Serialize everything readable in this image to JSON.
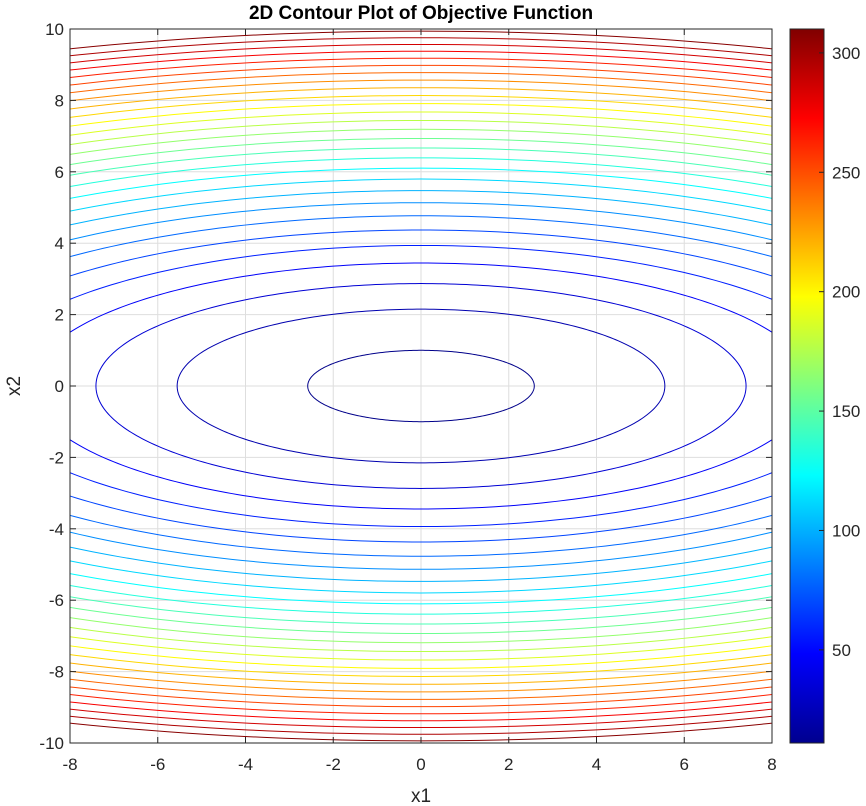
{
  "chart_data": {
    "type": "contour",
    "title": "2D Contour Plot of Objective Function",
    "xlabel": "x1",
    "ylabel": "x2",
    "xlim": [
      -8,
      8
    ],
    "ylim": [
      -10,
      10
    ],
    "x_ticks": [
      -8,
      -6,
      -4,
      -2,
      0,
      2,
      4,
      6,
      8
    ],
    "y_ticks": [
      -10,
      -8,
      -6,
      -4,
      -2,
      0,
      2,
      4,
      6,
      8,
      10
    ],
    "grid": true,
    "colormap": "jet",
    "colorbar": {
      "location": "right",
      "range": [
        11,
        310
      ],
      "ticks": [
        50,
        100,
        150,
        200,
        250,
        300
      ]
    },
    "contour_levels": [
      14,
      24.9,
      35.7,
      46.6,
      57.5,
      68.3,
      79.2,
      90.1,
      100.9,
      111.8,
      122.7,
      133.5,
      144.4,
      155.2,
      166.1,
      177,
      187.8,
      198.7,
      209.6,
      220.4,
      231.3,
      242.2,
      253,
      263.9,
      274.8,
      285.6,
      296.5,
      307.4
    ]
  }
}
